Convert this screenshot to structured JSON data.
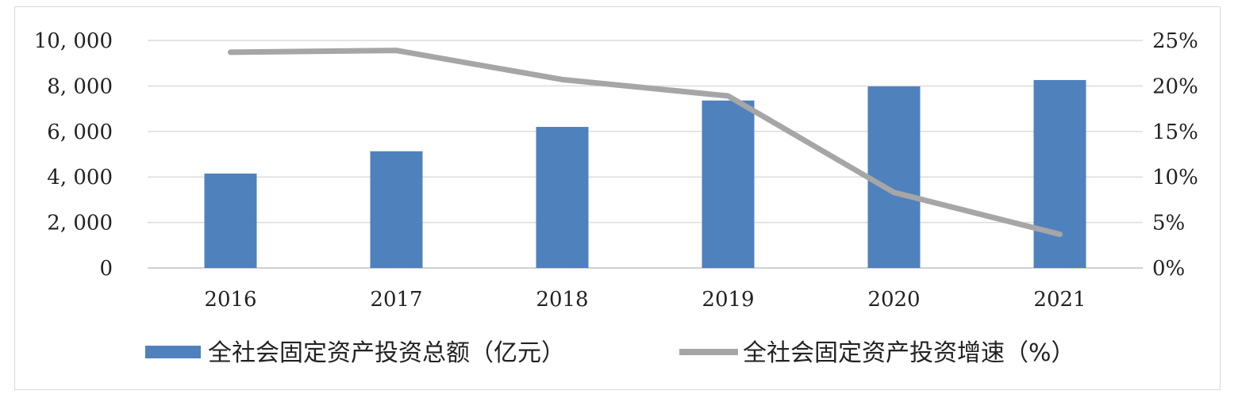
{
  "chart_data": {
    "type": "bar",
    "categories": [
      "2016",
      "2017",
      "2018",
      "2019",
      "2020",
      "2021"
    ],
    "series": [
      {
        "name": "全社会固定资产投资总额（亿元）",
        "type": "bar",
        "axis": "left",
        "color": "#4f81bd",
        "values": [
          4150,
          5130,
          6200,
          7360,
          7980,
          8260
        ]
      },
      {
        "name": "全社会固定资产投资增速（%）",
        "type": "line",
        "axis": "right",
        "color": "#a6a6a6",
        "values": [
          23.7,
          23.9,
          20.7,
          18.9,
          8.3,
          3.7
        ]
      }
    ],
    "y_left": {
      "ylim": [
        0,
        10000
      ],
      "ticks": [
        "0",
        "2, 000",
        "4, 000",
        "6, 000",
        "8, 000",
        "10, 000"
      ]
    },
    "y_right": {
      "ylim": [
        0,
        25
      ],
      "ticks": [
        "0%",
        "5%",
        "10%",
        "15%",
        "20%",
        "25%"
      ]
    },
    "grid": true,
    "legend_position": "bottom"
  }
}
